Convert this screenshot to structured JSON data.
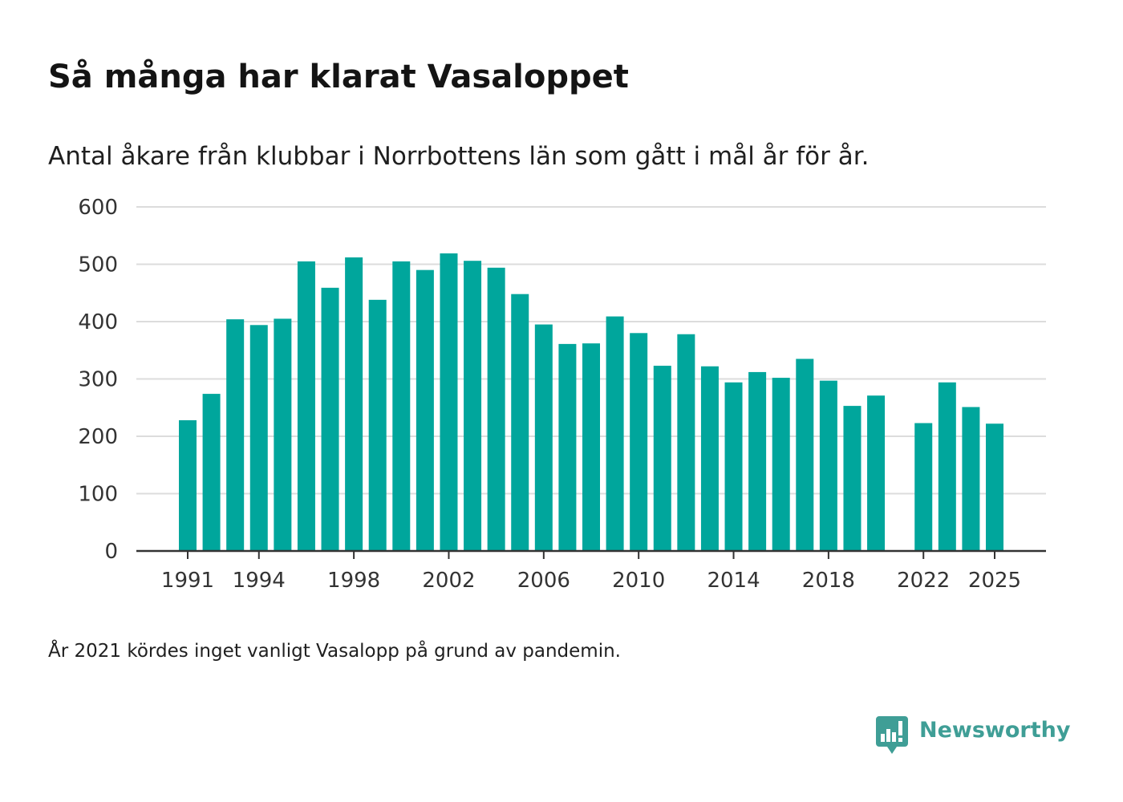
{
  "chart_data": {
    "type": "bar",
    "title": "Så många har klarat Vasaloppet",
    "subtitle": "Antal åkare från klubbar i Norrbottens län som gått i mål år för år.",
    "note": "År 2021 kördes inget vanligt Vasalopp på grund av pandemin.",
    "xlabel": "",
    "ylabel": "",
    "x": [
      1991,
      1992,
      1993,
      1994,
      1995,
      1996,
      1997,
      1998,
      1999,
      2000,
      2001,
      2002,
      2003,
      2004,
      2005,
      2006,
      2007,
      2008,
      2009,
      2010,
      2011,
      2012,
      2013,
      2014,
      2015,
      2016,
      2017,
      2018,
      2019,
      2020,
      2021,
      2022,
      2023,
      2024,
      2025
    ],
    "values": [
      228,
      274,
      404,
      394,
      405,
      505,
      459,
      512,
      438,
      505,
      490,
      519,
      506,
      494,
      448,
      395,
      361,
      362,
      409,
      380,
      323,
      378,
      322,
      294,
      312,
      302,
      335,
      297,
      253,
      271,
      null,
      223,
      294,
      251,
      222
    ],
    "x_tick_labels": [
      "1991",
      "1994",
      "1998",
      "2002",
      "2006",
      "2010",
      "2014",
      "2018",
      "2022",
      "2025"
    ],
    "y_ticks": [
      0,
      100,
      200,
      300,
      400,
      500,
      600
    ],
    "ylim": [
      0,
      600
    ],
    "grid": "horizontal",
    "legend": "none",
    "bar_color": "#00a69c"
  },
  "branding": {
    "logo_text": "Newsworthy",
    "logo_icon": "newsworthy-speech-bubble-chart-icon",
    "color": "#3f9e96"
  }
}
